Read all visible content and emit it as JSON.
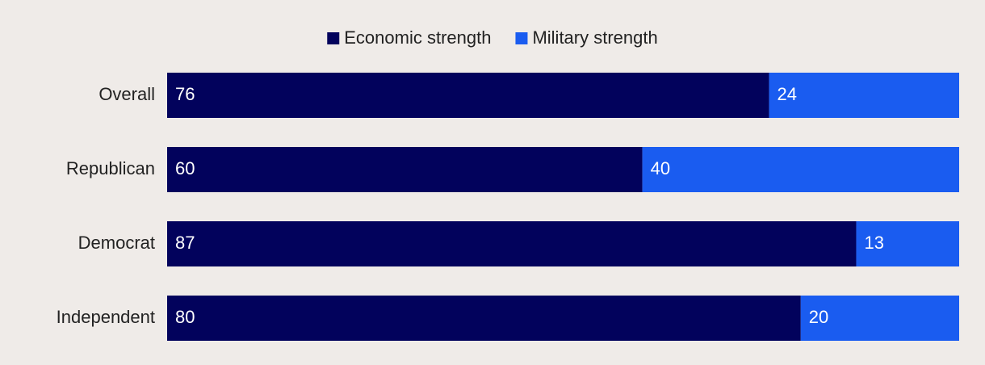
{
  "chart_data": {
    "type": "bar",
    "orientation": "horizontal",
    "stacked": true,
    "categories": [
      "Overall",
      "Republican",
      "Democrat",
      "Independent"
    ],
    "series": [
      {
        "name": "Economic strength",
        "color": "#02025c",
        "values": [
          76,
          60,
          87,
          80
        ]
      },
      {
        "name": "Military strength",
        "color": "#1a5cf0",
        "values": [
          24,
          40,
          13,
          20
        ]
      }
    ],
    "xlim": [
      0,
      100
    ],
    "legend": "top"
  }
}
